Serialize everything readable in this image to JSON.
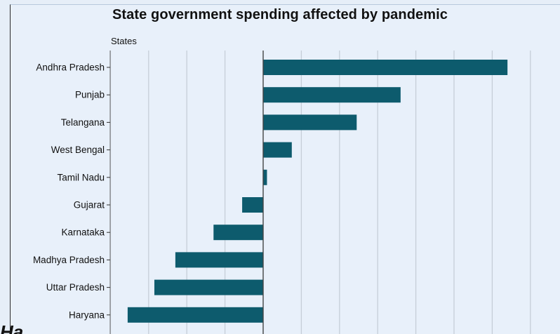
{
  "chart_data": {
    "type": "bar",
    "orientation": "horizontal",
    "title": "State government spending affected by pandemic",
    "ylabel": "States",
    "xlabel": "",
    "categories": [
      "Andhra Pradesh",
      "Punjab",
      "Telangana",
      "West Bengal",
      "Tamil Nadu",
      "Gujarat",
      "Karnataka",
      "Madhya Pradesh",
      "Uttar Pradesh",
      "Haryana"
    ],
    "values": [
      64,
      36,
      24.5,
      7.5,
      1,
      -5.5,
      -13,
      -23,
      -28.5,
      -35.5
    ],
    "xlim": [
      -40,
      70
    ],
    "grid": true,
    "bar_color": "#0d5b6d",
    "background_color": "#e8f0fa"
  },
  "footer_text": "Ha..."
}
